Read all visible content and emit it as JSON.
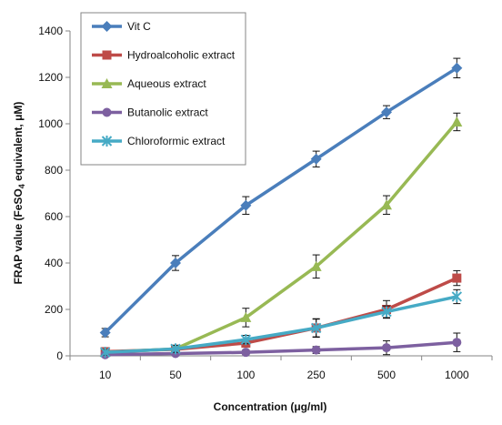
{
  "chart_data": {
    "type": "line",
    "categories": [
      "10",
      "50",
      "100",
      "250",
      "500",
      "1000"
    ],
    "xlabel": "Concentration (μg/ml)",
    "ylabel_parts": [
      "FRAP value (FeSO",
      "4",
      " equivalent, μM)"
    ],
    "ylim": [
      0,
      1400
    ],
    "yticks": [
      0,
      200,
      400,
      600,
      800,
      1000,
      1200,
      1400
    ],
    "grid": false,
    "legend_position": "top-left",
    "series": [
      {
        "name": "Vit C",
        "color": "#4a7ebb",
        "marker": "diamond",
        "values": [
          100,
          400,
          648,
          848,
          1050,
          1240
        ],
        "errors": [
          18,
          32,
          38,
          34,
          28,
          42
        ]
      },
      {
        "name": "Hydroalcoholic extract",
        "color": "#be4b48",
        "marker": "square",
        "values": [
          18,
          28,
          55,
          120,
          200,
          335
        ],
        "errors": [
          10,
          18,
          18,
          38,
          38,
          32
        ]
      },
      {
        "name": "Aqueous extract",
        "color": "#98b954",
        "marker": "triangle",
        "values": [
          15,
          30,
          165,
          385,
          650,
          1008
        ],
        "errors": [
          10,
          12,
          40,
          50,
          40,
          38
        ]
      },
      {
        "name": "Butanolic extract",
        "color": "#7d60a0",
        "marker": "circle",
        "values": [
          5,
          10,
          15,
          25,
          35,
          58
        ],
        "errors": [
          5,
          8,
          10,
          15,
          30,
          40
        ]
      },
      {
        "name": "Chloroformic extract",
        "color": "#46aac5",
        "marker": "star",
        "values": [
          15,
          30,
          70,
          120,
          190,
          255
        ],
        "errors": [
          12,
          15,
          18,
          40,
          25,
          30
        ]
      }
    ]
  }
}
